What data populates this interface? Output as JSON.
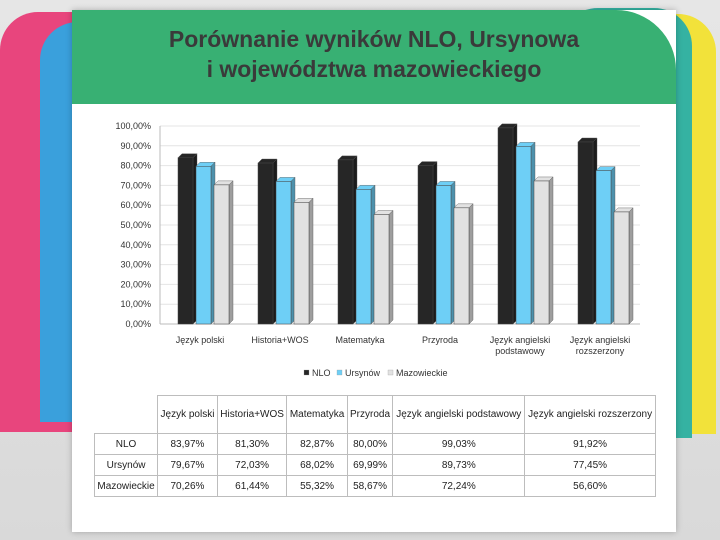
{
  "title": {
    "line1": "Porównanie wyników NLO, Ursynowa",
    "line2": "i województwa mazowieckiego"
  },
  "colors": {
    "NLO": "#262626",
    "Ursynów": "#6ecff6",
    "Mazowieckie": "#e2e2e2",
    "title_band": "#38b073"
  },
  "chart_data": {
    "type": "bar",
    "categories": [
      [
        "Język polski"
      ],
      [
        "Historia+WOS"
      ],
      [
        "Matematyka"
      ],
      [
        "Przyroda"
      ],
      [
        "Język angielski",
        "podstawowy"
      ],
      [
        "Język angielski",
        "rozszerzony"
      ]
    ],
    "series": [
      {
        "name": "NLO",
        "values": [
          83.97,
          81.3,
          82.87,
          80.0,
          99.03,
          91.92
        ]
      },
      {
        "name": "Ursynów",
        "values": [
          79.67,
          72.03,
          68.02,
          69.99,
          89.73,
          77.45
        ]
      },
      {
        "name": "Mazowieckie",
        "values": [
          70.26,
          61.44,
          55.32,
          58.67,
          72.24,
          56.6
        ]
      }
    ],
    "yticks": [
      "0,00%",
      "10,00%",
      "20,00%",
      "30,00%",
      "40,00%",
      "50,00%",
      "60,00%",
      "70,00%",
      "80,00%",
      "90,00%",
      "100,00%"
    ],
    "ylim": [
      0,
      100
    ],
    "legend_position": "bottom"
  },
  "table": {
    "header": [
      "",
      "Język polski",
      "Historia+WOS",
      "Matematyka",
      "Przyroda",
      "Język angielski podstawowy",
      "Język angielski rozszerzony"
    ],
    "rows": [
      [
        "NLO",
        "83,97%",
        "81,30%",
        "82,87%",
        "80,00%",
        "99,03%",
        "91,92%"
      ],
      [
        "Ursynów",
        "79,67%",
        "72,03%",
        "68,02%",
        "69,99%",
        "89,73%",
        "77,45%"
      ],
      [
        "Mazowieckie",
        "70,26%",
        "61,44%",
        "55,32%",
        "58,67%",
        "72,24%",
        "56,60%"
      ]
    ]
  }
}
